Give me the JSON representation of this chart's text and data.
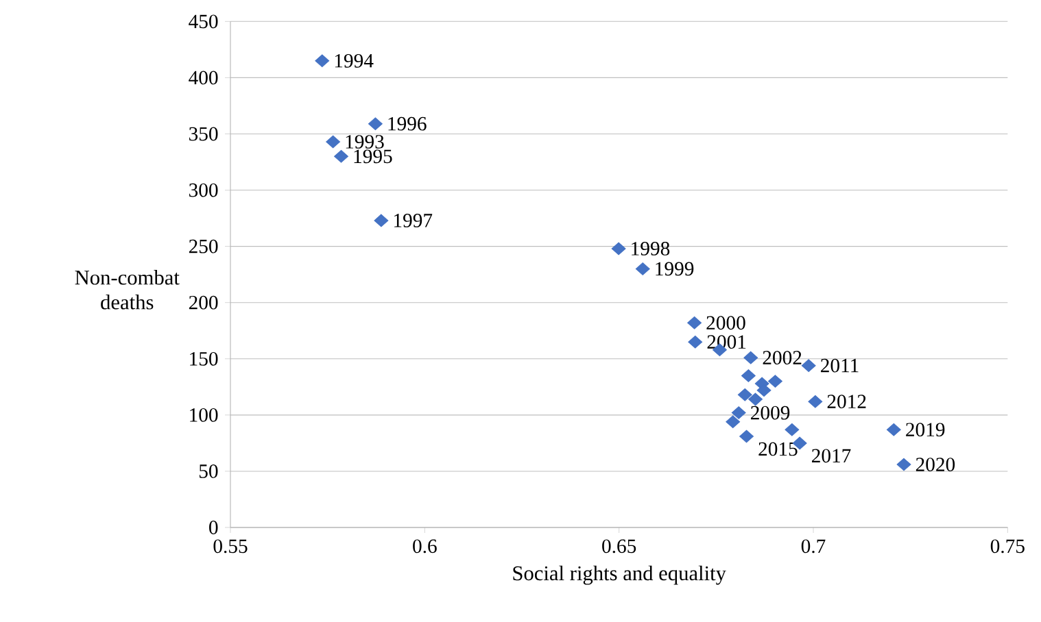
{
  "chart_data": {
    "type": "scatter",
    "xlabel": "Social rights and equality",
    "ylabel": "Non-combat deaths",
    "xlim": [
      0.55,
      0.75
    ],
    "xticks": [
      0.55,
      0.6,
      0.65,
      0.7,
      0.75
    ],
    "ylim": [
      0,
      450
    ],
    "yticks": [
      0,
      50,
      100,
      150,
      200,
      250,
      300,
      350,
      400,
      450
    ],
    "grid": "y",
    "marker": "diamond",
    "series": [
      {
        "color": "#4472c4",
        "x": [
          0.5764,
          0.5736,
          0.5785,
          0.5873,
          0.5888,
          0.6499,
          0.6561,
          0.6694,
          0.6696,
          0.6759,
          0.6839,
          0.6833,
          0.6868,
          0.6902,
          0.6873,
          0.6824,
          0.6851,
          0.6808,
          0.6793,
          0.6988,
          0.7005,
          0.6828,
          0.6945,
          0.6965,
          0.7207,
          0.7233
        ],
        "values": [
          343,
          415,
          330,
          359,
          273,
          248,
          230,
          182,
          165,
          158,
          151,
          135,
          128,
          130,
          122,
          118,
          114,
          102,
          94,
          144,
          112,
          81,
          87,
          75,
          87,
          56
        ]
      }
    ],
    "annotations": [
      {
        "text": "1993",
        "x": 0.5764,
        "y": 343
      },
      {
        "text": "1994",
        "x": 0.5736,
        "y": 415
      },
      {
        "text": "1995",
        "x": 0.5785,
        "y": 330
      },
      {
        "text": "1996",
        "x": 0.5873,
        "y": 359
      },
      {
        "text": "1997",
        "x": 0.5888,
        "y": 273
      },
      {
        "text": "1998",
        "x": 0.6499,
        "y": 248
      },
      {
        "text": "1999",
        "x": 0.6561,
        "y": 230
      },
      {
        "text": "2000",
        "x": 0.6694,
        "y": 182
      },
      {
        "text": "2001",
        "x": 0.6696,
        "y": 165
      },
      {
        "text": "2002",
        "x": 0.6839,
        "y": 151
      },
      {
        "text": "2009",
        "x": 0.6808,
        "y": 102
      },
      {
        "text": "2011",
        "x": 0.6988,
        "y": 144
      },
      {
        "text": "2012",
        "x": 0.7005,
        "y": 112
      },
      {
        "text": "2015",
        "x": 0.6828,
        "y": 81
      },
      {
        "text": "2017",
        "x": 0.6965,
        "y": 75
      },
      {
        "text": "2019",
        "x": 0.7207,
        "y": 87
      },
      {
        "text": "2020",
        "x": 0.7233,
        "y": 56
      }
    ]
  }
}
